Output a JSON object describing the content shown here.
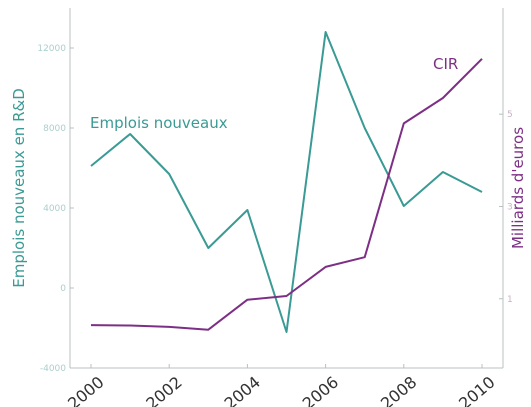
{
  "colors": {
    "emplois": "#3a9a94",
    "cir": "#7d2f85",
    "axis": "#b8c0c0"
  },
  "chart_data": {
    "type": "line",
    "x": [
      2000,
      2001,
      2002,
      2003,
      2004,
      2005,
      2006,
      2007,
      2008,
      2009,
      2010
    ],
    "x_ticks": [
      "2000",
      "2002",
      "2004",
      "2006",
      "2008",
      "2010"
    ],
    "ylabel_left": "Emplois nouveaux en R&D",
    "ylabel_right": "Milliards d'euros",
    "ylim_left": [
      -4000,
      14000
    ],
    "yticks_left": [
      "-4000",
      "0",
      "4000",
      "8000",
      "12000"
    ],
    "ylim_right": [
      -0.5,
      7.3
    ],
    "yticks_right": [
      "1",
      "3",
      "5"
    ],
    "series": [
      {
        "name": "Emplois nouveaux",
        "axis": "left",
        "values": [
          6100,
          7700,
          5700,
          2000,
          3900,
          -2200,
          12800,
          8000,
          4100,
          5800,
          4800
        ]
      },
      {
        "name": "CIR",
        "axis": "right",
        "values": [
          0.43,
          0.42,
          0.39,
          0.33,
          0.98,
          1.06,
          1.69,
          1.9,
          4.8,
          5.35,
          6.2
        ]
      }
    ]
  }
}
